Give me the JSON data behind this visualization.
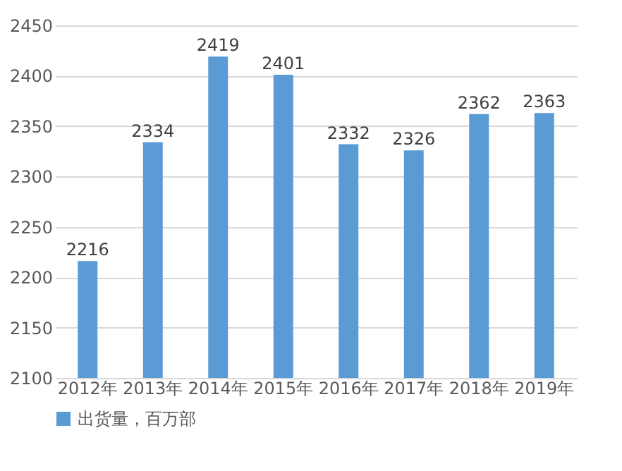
{
  "chart_data": {
    "type": "bar",
    "categories": [
      "2012年",
      "2013年",
      "2014年",
      "2015年",
      "2016年",
      "2017年",
      "2018年",
      "2019年"
    ],
    "series": [
      {
        "name": "出货量，百万部",
        "color": "#5b9bd5",
        "values": [
          2216,
          2334,
          2419,
          2401,
          2332,
          2326,
          2362,
          2363
        ]
      }
    ],
    "ylim": [
      2100,
      2450
    ],
    "yticks": [
      2100,
      2150,
      2200,
      2250,
      2300,
      2350,
      2400,
      2450
    ],
    "grid": "y",
    "legend": "bottom",
    "data_labels": true
  }
}
